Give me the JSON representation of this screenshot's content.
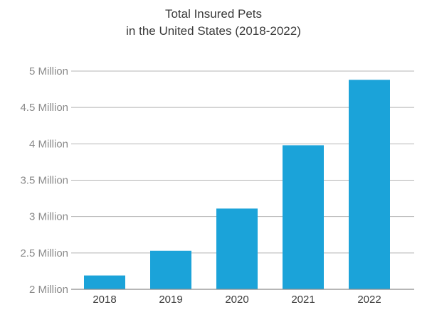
{
  "chart_data": {
    "type": "bar",
    "title_lines": [
      "Total Insured Pets",
      "in the United States (2018-2022)"
    ],
    "categories": [
      "2018",
      "2019",
      "2020",
      "2021",
      "2022"
    ],
    "values": [
      2.19,
      2.53,
      3.11,
      3.98,
      4.88
    ],
    "ylim": [
      2,
      5
    ],
    "y_ticks": [
      {
        "value": 2,
        "label": "2 Million"
      },
      {
        "value": 2.5,
        "label": "2.5 Million"
      },
      {
        "value": 3,
        "label": "3 Million"
      },
      {
        "value": 3.5,
        "label": "3.5 Million"
      },
      {
        "value": 4,
        "label": "4 Million"
      },
      {
        "value": 4.5,
        "label": "4.5 Million"
      },
      {
        "value": 5,
        "label": "5 Million"
      }
    ],
    "xlabel": "",
    "ylabel": "",
    "grid": true,
    "colors": {
      "bar": "#1ba3d9",
      "grid": "#b4b4b4",
      "axis": "#8a8a8a"
    }
  }
}
